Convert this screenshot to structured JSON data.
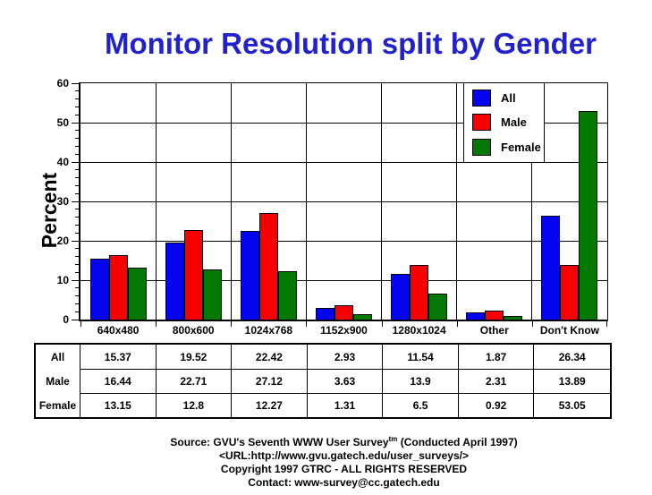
{
  "chart_data": {
    "type": "bar",
    "title": "Monitor Resolution split by Gender",
    "xlabel": "",
    "ylabel": "Percent",
    "ylim": [
      0,
      60
    ],
    "yticks": [
      0,
      10,
      20,
      30,
      40,
      50,
      60
    ],
    "minor_tick_step": 2,
    "grid": true,
    "legend_position": "top-right-inside",
    "categories": [
      "640x480",
      "800x600",
      "1024x768",
      "1152x900",
      "1280x1024",
      "Other",
      "Don't Know"
    ],
    "series": [
      {
        "name": "All",
        "color": "#0404EE",
        "values": [
          15.37,
          19.52,
          22.42,
          2.93,
          11.54,
          1.87,
          26.34
        ]
      },
      {
        "name": "Male",
        "color": "#F70000",
        "values": [
          16.44,
          22.71,
          27.12,
          3.63,
          13.9,
          2.31,
          13.89
        ]
      },
      {
        "name": "Female",
        "color": "#047804",
        "values": [
          13.15,
          12.8,
          12.27,
          1.31,
          6.5,
          0.92,
          53.05
        ]
      }
    ]
  },
  "table": {
    "row_labels": [
      "All",
      "Male",
      "Female"
    ],
    "columns": [
      "640x480",
      "800x600",
      "1024x768",
      "1152x900",
      "1280x1024",
      "Other",
      "Don't Know"
    ],
    "rows": [
      [
        "15.37",
        "19.52",
        "22.42",
        "2.93",
        "11.54",
        "1.87",
        "26.34"
      ],
      [
        "16.44",
        "22.71",
        "27.12",
        "3.63",
        "13.9",
        "2.31",
        "13.89"
      ],
      [
        "13.15",
        "12.8",
        "12.27",
        "1.31",
        "6.5",
        "0.92",
        "53.05"
      ]
    ]
  },
  "footer": {
    "line1_prefix": "Source: GVU's Seventh WWW User Survey",
    "line1_sup": "tm",
    "line1_suffix": " (Conducted April 1997)",
    "line2": "<URL:http://www.gvu.gatech.edu/user_surveys/>",
    "line3": "Copyright 1997 GTRC - ALL RIGHTS RESERVED",
    "line4": "Contact: www-survey@cc.gatech.edu"
  },
  "colors": {
    "title": "#2222CC",
    "axis": "#000000",
    "all": "#0404EE",
    "male": "#F70000",
    "female": "#047804"
  }
}
